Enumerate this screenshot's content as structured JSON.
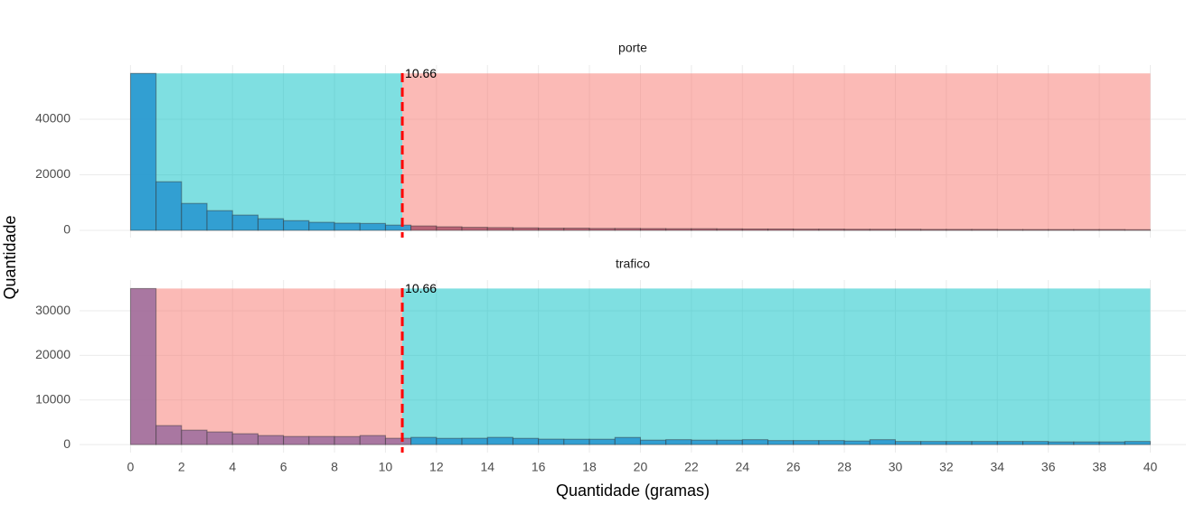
{
  "chart_data": {
    "type": "histogram",
    "xlabel": "Quantidade (gramas)",
    "ylabel": "Quantidade",
    "bins": [
      0,
      1,
      2,
      3,
      4,
      5,
      6,
      7,
      8,
      9,
      10,
      11,
      12,
      13,
      14,
      15,
      16,
      17,
      18,
      19,
      20,
      21,
      22,
      23,
      24,
      25,
      26,
      27,
      28,
      29,
      30,
      31,
      32,
      33,
      34,
      35,
      36,
      37,
      38,
      39,
      40
    ],
    "xlim": [
      -2,
      41.4
    ],
    "xticks": [
      0,
      2,
      4,
      6,
      8,
      10,
      12,
      14,
      16,
      18,
      20,
      22,
      24,
      26,
      28,
      30,
      32,
      34,
      36,
      38,
      40
    ],
    "threshold": 10.66,
    "threshold_color": "#ff0000",
    "grid": true,
    "facets": [
      {
        "title": "porte",
        "values": [
          56500,
          17500,
          9700,
          7100,
          5500,
          4200,
          3500,
          2900,
          2600,
          2500,
          1900,
          1600,
          1300,
          1100,
          1000,
          900,
          800,
          800,
          700,
          700,
          650,
          600,
          600,
          550,
          500,
          500,
          450,
          450,
          400,
          400,
          400,
          350,
          350,
          350,
          300,
          300,
          300,
          300,
          300,
          250
        ],
        "ylim": [
          -2600,
          59500
        ],
        "yticks": [
          0,
          20000,
          40000
        ],
        "region_colors": [
          "#00bfc4",
          "#f8766d"
        ],
        "bar_colors": [
          "#2a98d0",
          "#b05a6e"
        ]
      },
      {
        "title": "trafico",
        "values": [
          35000,
          4260,
          3240,
          2840,
          2430,
          2030,
          1820,
          1820,
          1800,
          2030,
          1420,
          1620,
          1400,
          1420,
          1620,
          1400,
          1220,
          1200,
          1200,
          1600,
          1000,
          1100,
          1000,
          1000,
          1100,
          900,
          900,
          900,
          800,
          1100,
          700,
          700,
          700,
          700,
          700,
          700,
          600,
          600,
          600,
          700
        ],
        "ylim": [
          -1800,
          36900
        ],
        "yticks": [
          0,
          10000,
          20000,
          30000
        ],
        "region_colors": [
          "#f8766d",
          "#00bfc4"
        ],
        "bar_colors": [
          "#a0709e",
          "#2a98d0"
        ]
      }
    ]
  }
}
